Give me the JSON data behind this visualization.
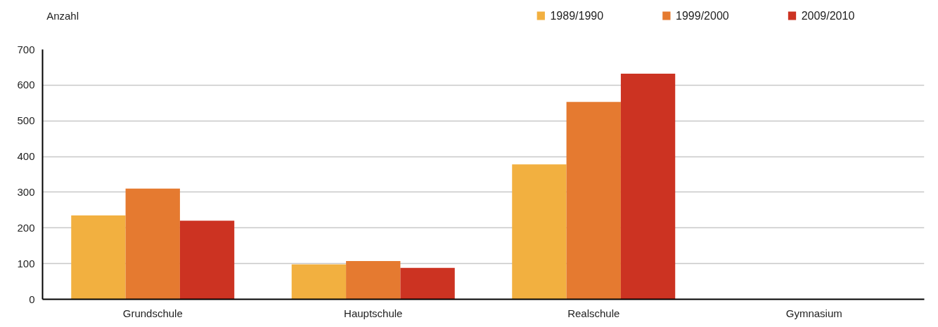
{
  "chart_data": {
    "type": "bar",
    "ylabel": "Anzahl",
    "categories": [
      "Grundschule",
      "Hauptschule",
      "Realschule",
      "Gymnasium"
    ],
    "series": [
      {
        "name": "1989/1990",
        "color": "#f2b040",
        "values": [
          235,
          98,
          378,
          0
        ]
      },
      {
        "name": "1999/2000",
        "color": "#e57a30",
        "values": [
          310,
          107,
          553,
          0
        ]
      },
      {
        "name": "2009/2010",
        "color": "#cc3322",
        "values": [
          220,
          88,
          632,
          0
        ]
      }
    ],
    "ylim": [
      0,
      700
    ],
    "yticks": [
      0,
      100,
      200,
      300,
      400,
      500,
      600,
      700
    ],
    "grid": "y",
    "legend": "top right"
  }
}
